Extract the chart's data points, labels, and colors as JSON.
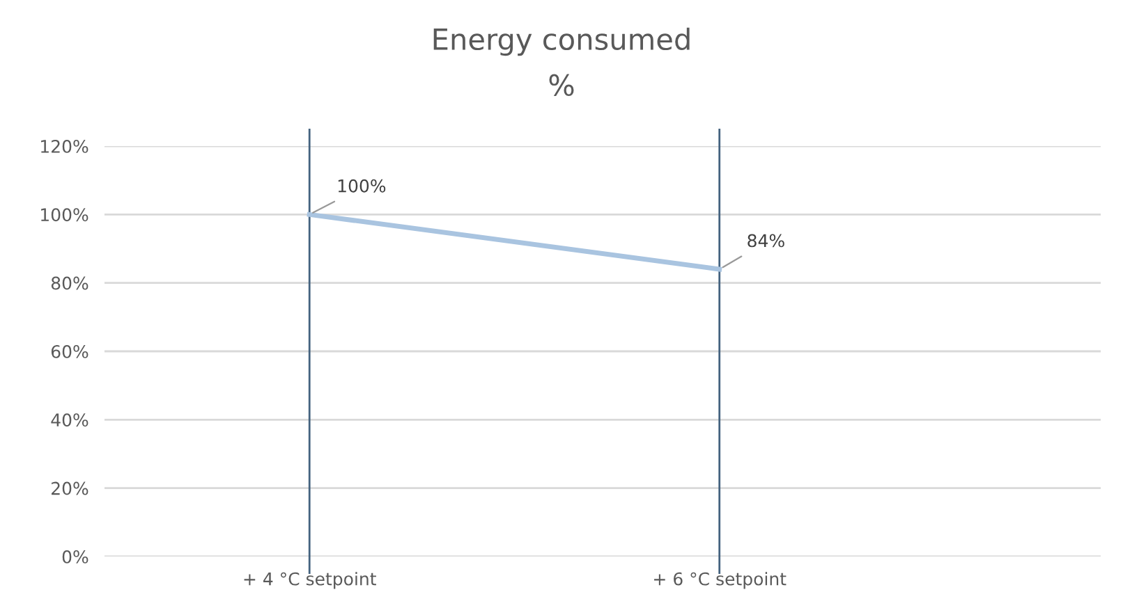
{
  "chart_data": {
    "type": "line",
    "title": "Energy consumed",
    "subtitle": "%",
    "categories": [
      "+ 4 °C setpoint",
      "+ 6 °C setpoint"
    ],
    "series": [
      {
        "color": "#a9c4e0",
        "values": [
          100,
          84
        ],
        "value_labels": [
          "100%",
          "84%"
        ]
      }
    ],
    "ylim": [
      0,
      120
    ],
    "yticks": [
      {
        "value": 0,
        "label": "0%"
      },
      {
        "value": 20,
        "label": "20%"
      },
      {
        "value": 40,
        "label": "40%"
      },
      {
        "value": 60,
        "label": "60%"
      },
      {
        "value": 80,
        "label": "80%"
      },
      {
        "value": 100,
        "label": "100%"
      },
      {
        "value": 120,
        "label": "120%"
      }
    ],
    "grid": true,
    "legend": false,
    "marker": "none",
    "line_style": "solid"
  }
}
